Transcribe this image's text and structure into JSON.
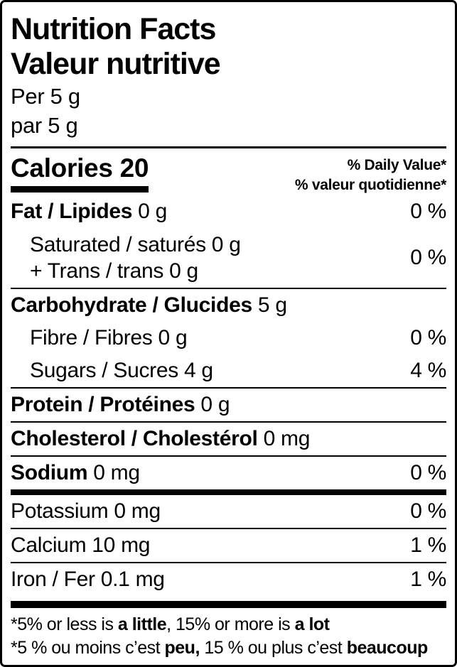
{
  "colors": {
    "text": "#000000",
    "background": "#ffffff"
  },
  "header": {
    "title_en": "Nutrition Facts",
    "title_fr": "Valeur nutritive",
    "serving_en": "Per 5 g",
    "serving_fr": "par 5 g"
  },
  "calories": {
    "label": "Calories 20"
  },
  "daily_value_header": {
    "en": "% Daily Value*",
    "fr": "% valeur quotidienne*"
  },
  "nutrients": {
    "fat": {
      "bold": "Fat / Lipides",
      "rest": " 0 g",
      "pct": "0 %"
    },
    "saturated": {
      "line1": "Saturated / saturés 0 g",
      "line2": "+ Trans / trans 0 g",
      "pct": "0 %"
    },
    "carbohydrate": {
      "bold": "Carbohydrate / Glucides",
      "rest": " 5 g"
    },
    "fibre": {
      "text": "Fibre / Fibres 0 g",
      "pct": "0 %"
    },
    "sugars": {
      "text": "Sugars / Sucres 4 g",
      "pct": "4 %"
    },
    "protein": {
      "bold": "Protein / Protéines",
      "rest": " 0 g"
    },
    "cholesterol": {
      "bold": "Cholesterol / Cholestérol",
      "rest": " 0 mg"
    },
    "sodium": {
      "bold": "Sodium",
      "rest": " 0 mg",
      "pct": "0 %"
    },
    "potassium": {
      "text": "Potassium 0 mg",
      "pct": "0 %"
    },
    "calcium": {
      "text": "Calcium 10 mg",
      "pct": "1 %"
    },
    "iron": {
      "text": "Iron / Fer 0.1 mg",
      "pct": "1 %"
    }
  },
  "footnote": {
    "en": {
      "pre": "*5% or less is ",
      "bold1": "a little",
      "mid": ", 15% or more is ",
      "bold2": "a lot"
    },
    "fr": {
      "pre": "*5 % ou moins c’est ",
      "bold1": "peu,",
      "mid": " 15 % ou plus c’est ",
      "bold2": "beaucoup"
    }
  }
}
